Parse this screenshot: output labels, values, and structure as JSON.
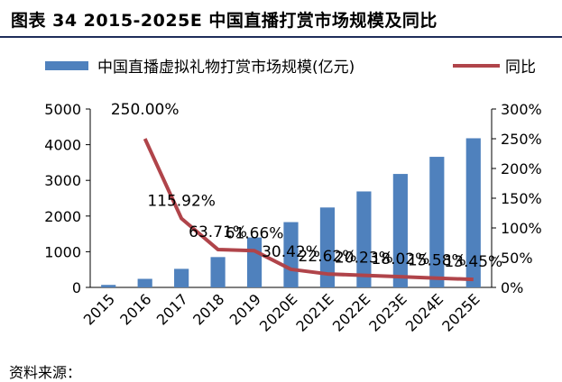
{
  "figure": {
    "title": "图表 34 2015-2025E 中国直播打赏市场规模及同比"
  },
  "chart_data": {
    "type": "bar",
    "categories": [
      "2015",
      "2016",
      "2017",
      "2018",
      "2019",
      "2020E",
      "2021E",
      "2022E",
      "2023E",
      "2024E",
      "2025E"
    ],
    "series": [
      {
        "name": "中国直播虚拟礼物打赏市场规模(亿元)",
        "type": "bar",
        "axis": "left",
        "color": "#4f81bd",
        "values": [
          70,
          240,
          520,
          850,
          1400,
          1830,
          2240,
          2690,
          3180,
          3660,
          4180
        ]
      },
      {
        "name": "同比",
        "type": "line",
        "axis": "right",
        "color": "#b0444a",
        "values": [
          null,
          250.0,
          115.92,
          63.71,
          61.66,
          30.42,
          22.62,
          20.23,
          18.02,
          15.58,
          13.45
        ],
        "labels": [
          "",
          "250.00%",
          "115.92%",
          "63.71%",
          "61.66%",
          "30.42%",
          "22.62%",
          "20.23%",
          "18.02%",
          "15.58%",
          "13.45%"
        ]
      }
    ],
    "y_left": {
      "min": 0,
      "max": 5000,
      "ticks": [
        "0",
        "1000",
        "2000",
        "3000",
        "4000",
        "5000"
      ]
    },
    "y_right": {
      "min": 0,
      "max": 300,
      "ticks": [
        "0%",
        "50%",
        "100%",
        "150%",
        "200%",
        "250%",
        "300%"
      ]
    },
    "grid": false,
    "legend_position": "top"
  },
  "footer": {
    "text": "资料来源："
  }
}
